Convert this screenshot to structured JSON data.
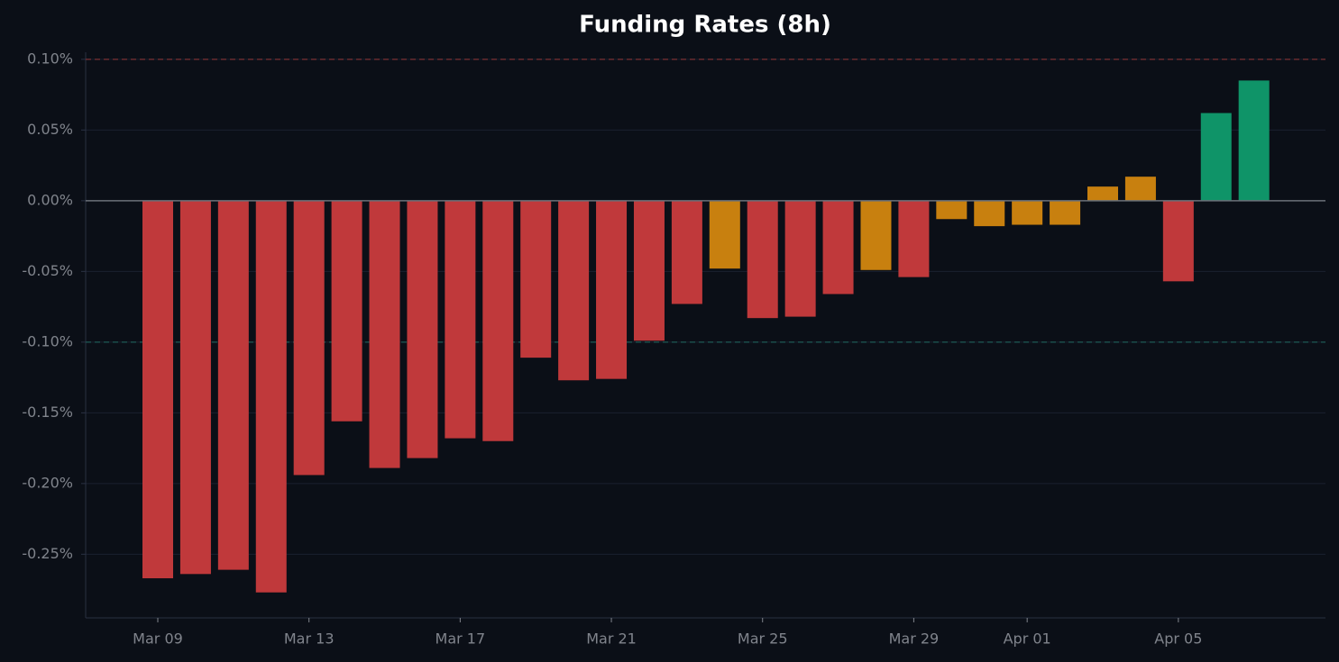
{
  "chart_data": {
    "type": "bar",
    "title": "Funding Rates (8h)",
    "categories": [
      "Mar 09",
      null,
      null,
      null,
      "Mar 13",
      null,
      null,
      null,
      "Mar 17",
      null,
      null,
      null,
      "Mar 21",
      null,
      null,
      null,
      "Mar 25",
      null,
      null,
      null,
      "Mar 29",
      null,
      null,
      "Apr 01",
      null,
      null,
      null,
      "Apr 05",
      null,
      null
    ],
    "values": [
      -0.267,
      -0.264,
      -0.261,
      -0.277,
      -0.194,
      -0.156,
      -0.189,
      -0.182,
      -0.168,
      -0.17,
      -0.111,
      -0.127,
      -0.126,
      -0.099,
      -0.073,
      -0.048,
      -0.083,
      -0.082,
      -0.066,
      -0.049,
      -0.054,
      -0.013,
      -0.018,
      -0.017,
      -0.017,
      0.01,
      0.017,
      -0.057,
      0.062,
      0.085
    ],
    "colors": [
      "#c0393b",
      "#c0393b",
      "#c0393b",
      "#c0393b",
      "#c0393b",
      "#c0393b",
      "#c0393b",
      "#c0393b",
      "#c0393b",
      "#c0393b",
      "#c0393b",
      "#c0393b",
      "#c0393b",
      "#c0393b",
      "#c0393b",
      "#c8800f",
      "#c0393b",
      "#c0393b",
      "#c0393b",
      "#c8800f",
      "#c0393b",
      "#c8800f",
      "#c8800f",
      "#c8800f",
      "#c8800f",
      "#c8800f",
      "#c8800f",
      "#c0393b",
      "#0f9468",
      "#0f9468"
    ],
    "ylim": [
      -0.295,
      0.105
    ],
    "yticks": [
      {
        "value": 0.1,
        "label": "0.10%"
      },
      {
        "value": 0.05,
        "label": "0.05%"
      },
      {
        "value": 0,
        "label": "0.00%"
      },
      {
        "value": -0.05,
        "label": "-0.05%"
      },
      {
        "value": -0.1,
        "label": "-0.10%"
      },
      {
        "value": -0.15,
        "label": "-0.15%"
      },
      {
        "value": -0.2,
        "label": "-0.20%"
      },
      {
        "value": -0.25,
        "label": "-0.25%"
      }
    ],
    "grid": true,
    "reference_lines": [
      {
        "value": 0.1,
        "color": "#7a2f33"
      },
      {
        "value": -0.1,
        "color": "#1d5a55"
      }
    ]
  }
}
